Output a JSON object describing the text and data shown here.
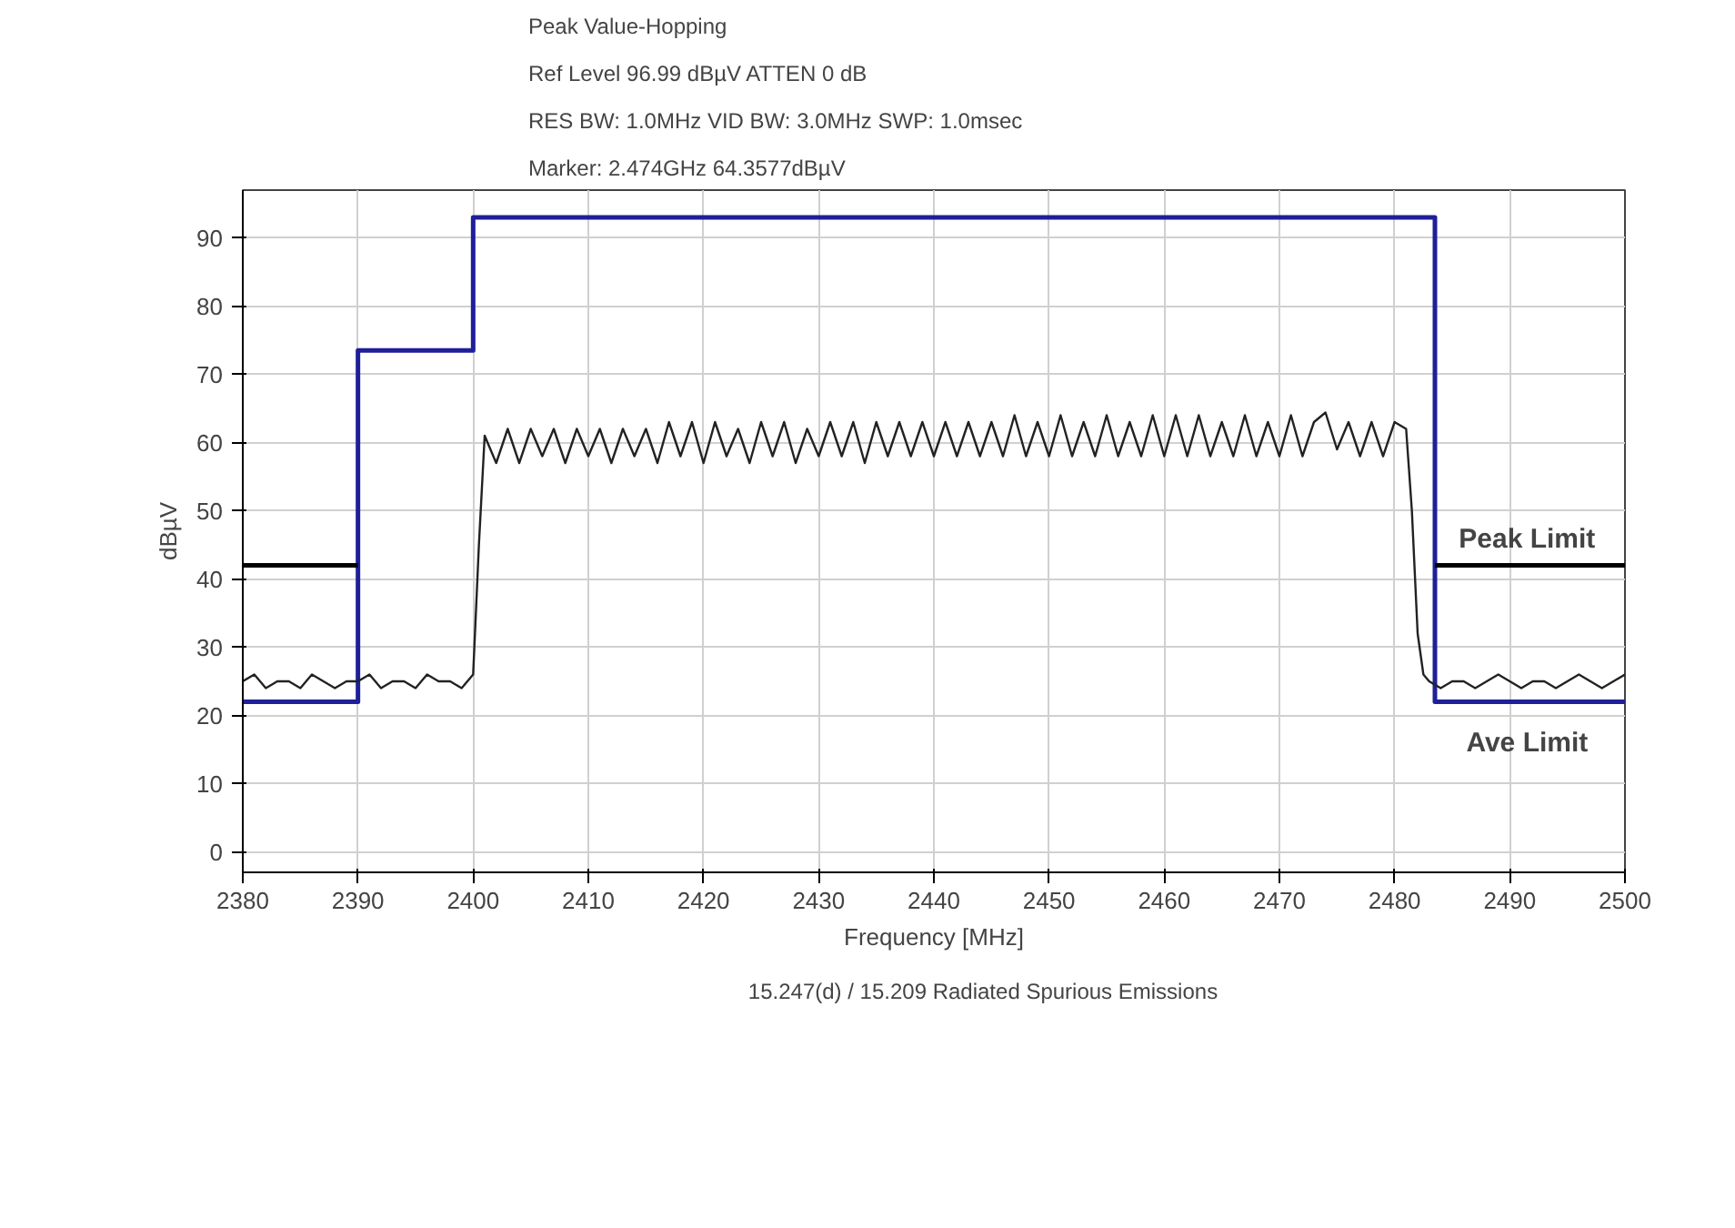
{
  "chart_data": {
    "type": "line",
    "title": "Peak Value-Hopping",
    "annotations": [
      "Ref Level 96.99 dBµV    ATTEN 0 dB",
      "RES BW: 1.0MHz  VID BW: 3.0MHz  SWP: 1.0msec",
      "Marker: 2.474GHz  64.3577dBµV",
      {
        "text": "Peak Limit",
        "x": 2491.5,
        "y": 42
      },
      {
        "text": "Ave Limit",
        "x": 2491.5,
        "y": 22
      }
    ],
    "xlabel": "Frequency [MHz]",
    "ylabel": "dBµV",
    "xlim": [
      2380,
      2500
    ],
    "ylim": [
      -3,
      97
    ],
    "xticks": [
      2380,
      2390,
      2400,
      2410,
      2420,
      2430,
      2440,
      2450,
      2460,
      2470,
      2480,
      2490,
      2500
    ],
    "yticks": [
      0,
      10,
      20,
      30,
      40,
      50,
      60,
      70,
      80,
      90
    ],
    "grid": true,
    "legend": "bottom",
    "series": [
      {
        "name": "15.247(d) / 15.209 Radiated Spurious Emissions",
        "color": "#1f1f9a",
        "x": [
          2380,
          2390,
          2390,
          2400,
          2400,
          2483.5,
          2483.5,
          2500
        ],
        "values": [
          22,
          22,
          73.5,
          73.5,
          93,
          93,
          22,
          22
        ]
      },
      {
        "color": "#000000",
        "x": [
          2380,
          2390
        ],
        "values": [
          42,
          42
        ]
      },
      {
        "color": "#000000",
        "x": [
          2483.5,
          2500
        ],
        "values": [
          42,
          42
        ]
      },
      {
        "color": "#222222",
        "x": [
          2380,
          2381,
          2382,
          2383,
          2384,
          2385,
          2386,
          2387,
          2388,
          2389,
          2390,
          2391,
          2392,
          2393,
          2394,
          2395,
          2396,
          2397,
          2398,
          2399,
          2400,
          2400.5,
          2401,
          2402,
          2403,
          2404,
          2405,
          2406,
          2407,
          2408,
          2409,
          2410,
          2411,
          2412,
          2413,
          2414,
          2415,
          2416,
          2417,
          2418,
          2419,
          2420,
          2421,
          2422,
          2423,
          2424,
          2425,
          2426,
          2427,
          2428,
          2429,
          2430,
          2431,
          2432,
          2433,
          2434,
          2435,
          2436,
          2437,
          2438,
          2439,
          2440,
          2441,
          2442,
          2443,
          2444,
          2445,
          2446,
          2447,
          2448,
          2449,
          2450,
          2451,
          2452,
          2453,
          2454,
          2455,
          2456,
          2457,
          2458,
          2459,
          2460,
          2461,
          2462,
          2463,
          2464,
          2465,
          2466,
          2467,
          2468,
          2469,
          2470,
          2471,
          2472,
          2473,
          2474,
          2475,
          2476,
          2477,
          2478,
          2479,
          2480,
          2481,
          2481.5,
          2482,
          2482.5,
          2483,
          2484,
          2485,
          2486,
          2487,
          2488,
          2489,
          2490,
          2491,
          2492,
          2493,
          2494,
          2495,
          2496,
          2497,
          2498,
          2499,
          2500
        ],
        "values": [
          25,
          26,
          24,
          25,
          25,
          24,
          26,
          25,
          24,
          25,
          25,
          26,
          24,
          25,
          25,
          24,
          26,
          25,
          25,
          24,
          26,
          45,
          61,
          57,
          62,
          57,
          62,
          58,
          62,
          57,
          62,
          58,
          62,
          57,
          62,
          58,
          62,
          57,
          63,
          58,
          63,
          57,
          63,
          58,
          62,
          57,
          63,
          58,
          63,
          57,
          62,
          58,
          63,
          58,
          63,
          57,
          63,
          58,
          63,
          58,
          63,
          58,
          63,
          58,
          63,
          58,
          63,
          58,
          64,
          58,
          63,
          58,
          64,
          58,
          63,
          58,
          64,
          58,
          63,
          58,
          64,
          58,
          64,
          58,
          64,
          58,
          63,
          58,
          64,
          58,
          63,
          58,
          64,
          58,
          63,
          64.4,
          59,
          63,
          58,
          63,
          58,
          63,
          62,
          50,
          32,
          26,
          25,
          24,
          25,
          25,
          24,
          25,
          26,
          25,
          24,
          25,
          25,
          24,
          25,
          26,
          25,
          24,
          25,
          26
        ]
      }
    ]
  }
}
